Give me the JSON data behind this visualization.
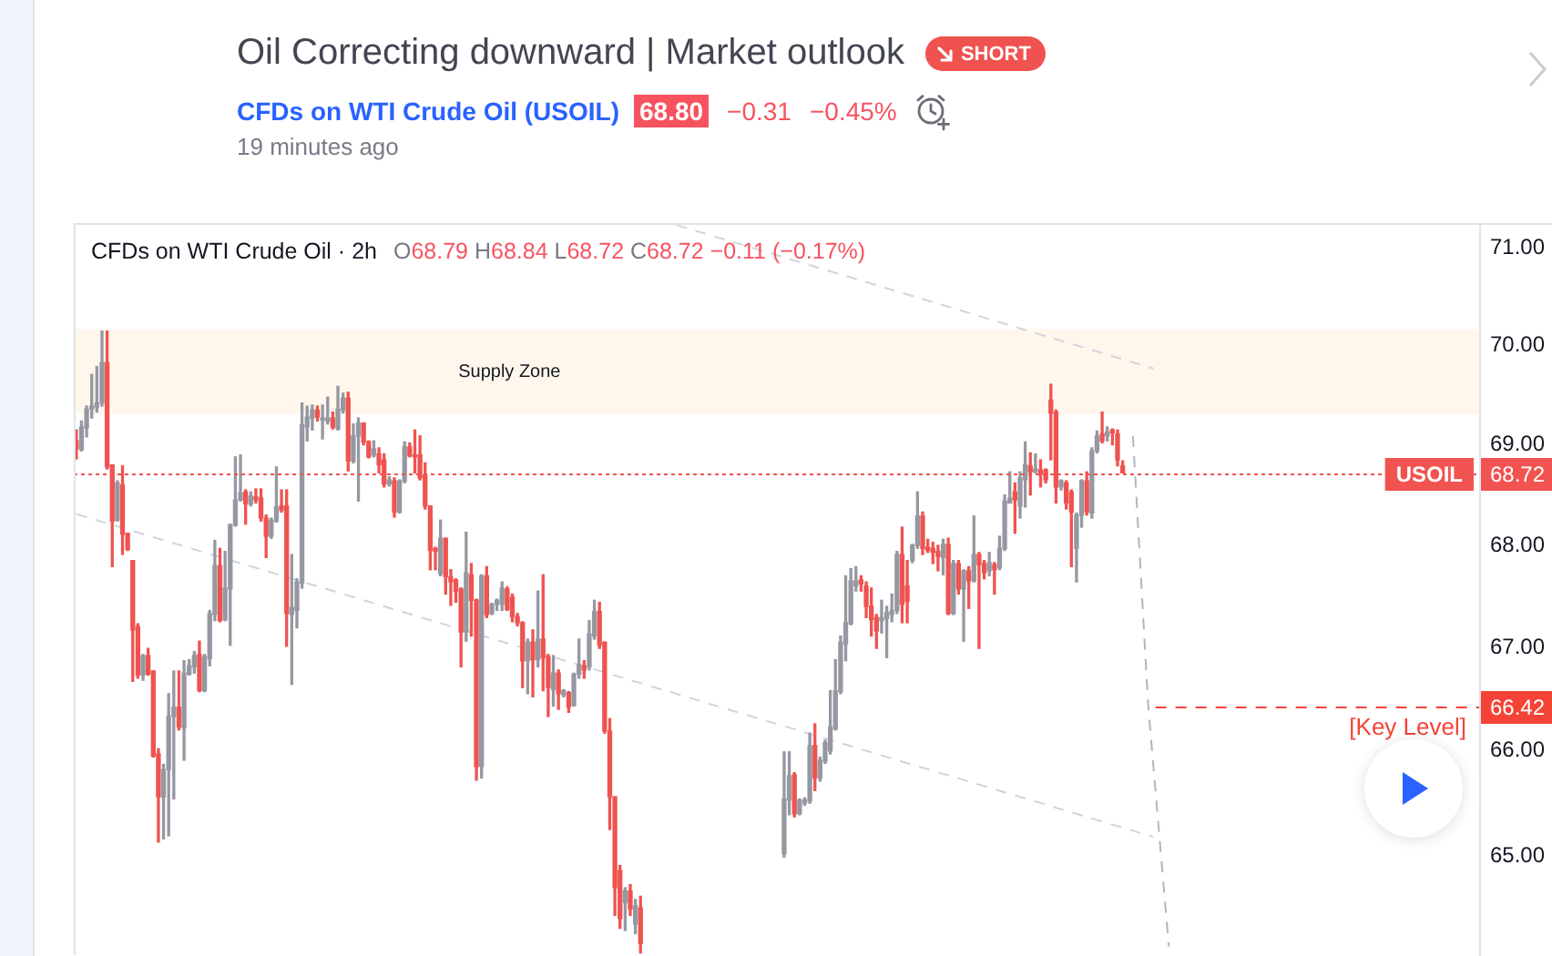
{
  "chart_data": {
    "type": "candlestick",
    "title": "Oil Correcting downward | Market outlook",
    "subtitle": "CFDs on WTI Crude Oil · 2h",
    "annotations": [
      "SHORT",
      "CFDs on WTI Crude Oil (USOIL)",
      "68.80",
      "−0.31",
      "−0.45%",
      "19 minutes ago",
      "O68.79 H68.84 L68.72 C68.72 −0.11 (−0.17%)",
      {
        "text": "68.72",
        "y": 68.72
      },
      {
        "text": "66.42",
        "y": 66.42
      }
    ],
    "categories": [
      null,
      null,
      null,
      null,
      null,
      null,
      null,
      null,
      null,
      null,
      null,
      null,
      null,
      null,
      null,
      null,
      null,
      null,
      null,
      null,
      null,
      null,
      null,
      null,
      null,
      null,
      null,
      null,
      null,
      null,
      null,
      null,
      null,
      null,
      null,
      null,
      null,
      null,
      null,
      null,
      null,
      null,
      null,
      null,
      null,
      null,
      null,
      null,
      null,
      null,
      null,
      null,
      null,
      null,
      null,
      null,
      null,
      null,
      null,
      null,
      null,
      null,
      null,
      null,
      null,
      null,
      null,
      null,
      null,
      null,
      null,
      null,
      null,
      null,
      null,
      null,
      null,
      null,
      null,
      null,
      null,
      null,
      null,
      null,
      null,
      null,
      null,
      null,
      null,
      null,
      null,
      null,
      null,
      null,
      null,
      null,
      null,
      null,
      null,
      null,
      null,
      null,
      null,
      null,
      null,
      null,
      null,
      null,
      null,
      null,
      null,
      null,
      null,
      null,
      null,
      null,
      null,
      null,
      null,
      null,
      null,
      null,
      null,
      null,
      null,
      null,
      null,
      null,
      null,
      null,
      null,
      null,
      null,
      null,
      null,
      null,
      null,
      null,
      null,
      null,
      null,
      null,
      null,
      null,
      null,
      null,
      null,
      null,
      null,
      null,
      null,
      null,
      null,
      null,
      null,
      null,
      null,
      null,
      null,
      null,
      null,
      null,
      null,
      null,
      null,
      null,
      null,
      null,
      null,
      null,
      null,
      null,
      null,
      null,
      null,
      null,
      null,
      null,
      null,
      null,
      null,
      null,
      null,
      null,
      null,
      null,
      null,
      null,
      null,
      null,
      null,
      null,
      null,
      null,
      null,
      null,
      null,
      null,
      null,
      null,
      null,
      null,
      null,
      null,
      null,
      null,
      null,
      null,
      null,
      null,
      null,
      null,
      null,
      null,
      null,
      null,
      null,
      null,
      null,
      null,
      null,
      null,
      null,
      null,
      null,
      null,
      null,
      null,
      null,
      null,
      null,
      null,
      null,
      null,
      null,
      null,
      null,
      null,
      null,
      null,
      null,
      null,
      null,
      null,
      null,
      null,
      null,
      null,
      null,
      null,
      null,
      null,
      null,
      null,
      null,
      null,
      null,
      null,
      null,
      null,
      null,
      null,
      null,
      null,
      null,
      null,
      null,
      null,
      null,
      null,
      null,
      null,
      null,
      null
    ],
    "ohlc": [
      [
        69.04,
        69.15,
        68.86,
        68.96
      ],
      [
        68.95,
        69.24,
        68.94,
        69.18
      ],
      [
        69.17,
        69.39,
        69.08,
        69.36
      ],
      [
        69.36,
        69.71,
        69.27,
        69.39
      ],
      [
        69.38,
        69.79,
        69.33,
        69.42
      ],
      [
        69.42,
        70.15,
        69.39,
        69.83
      ],
      [
        69.83,
        70.15,
        68.76,
        68.78
      ],
      [
        68.8,
        68.8,
        67.79,
        68.24
      ],
      [
        68.25,
        68.64,
        68.24,
        68.62
      ],
      [
        68.6,
        68.79,
        67.91,
        68.11
      ],
      [
        68.12,
        68.12,
        67.95,
        67.96
      ],
      [
        67.85,
        67.85,
        66.67,
        67.17
      ],
      [
        67.2,
        67.23,
        66.7,
        66.73
      ],
      [
        66.73,
        66.93,
        66.68,
        66.92
      ],
      [
        66.92,
        66.99,
        66.73,
        66.74
      ],
      [
        66.77,
        66.77,
        65.94,
        65.95
      ],
      [
        65.97,
        66.02,
        65.13,
        65.56
      ],
      [
        65.56,
        65.87,
        65.16,
        65.82
      ],
      [
        65.82,
        66.55,
        65.19,
        66.33
      ],
      [
        66.33,
        66.77,
        65.54,
        66.42
      ],
      [
        66.42,
        66.77,
        66.2,
        66.23
      ],
      [
        66.22,
        66.87,
        65.91,
        66.75
      ],
      [
        66.74,
        66.88,
        66.73,
        66.82
      ],
      [
        66.81,
        66.96,
        66.75,
        66.92
      ],
      [
        66.93,
        67.06,
        66.57,
        66.58
      ],
      [
        66.58,
        66.93,
        66.57,
        66.91
      ],
      [
        66.89,
        67.36,
        66.82,
        67.33
      ],
      [
        67.32,
        68.05,
        67.26,
        67.8
      ],
      [
        67.8,
        67.97,
        67.25,
        67.26
      ],
      [
        67.27,
        67.94,
        67.26,
        67.58
      ],
      [
        67.57,
        68.21,
        67.02,
        68.2
      ],
      [
        68.2,
        68.88,
        68.19,
        68.45
      ],
      [
        68.45,
        68.9,
        68.44,
        68.52
      ],
      [
        68.53,
        68.55,
        68.21,
        68.41
      ],
      [
        68.41,
        68.53,
        68.39,
        68.49
      ],
      [
        68.48,
        68.56,
        68.42,
        68.45
      ],
      [
        68.47,
        68.56,
        68.24,
        68.27
      ],
      [
        68.27,
        68.3,
        67.88,
        68.09
      ],
      [
        68.09,
        68.27,
        68.07,
        68.25
      ],
      [
        68.24,
        68.78,
        68.23,
        68.38
      ],
      [
        68.39,
        68.55,
        68.33,
        68.35
      ],
      [
        68.39,
        68.55,
        67.01,
        67.33
      ],
      [
        67.32,
        67.91,
        66.64,
        67.39
      ],
      [
        67.36,
        67.67,
        67.19,
        67.64
      ],
      [
        67.63,
        69.42,
        67.58,
        69.2
      ],
      [
        69.18,
        69.39,
        69.04,
        69.28
      ],
      [
        69.27,
        69.4,
        69.15,
        69.35
      ],
      [
        69.35,
        69.39,
        69.24,
        69.28
      ],
      [
        69.25,
        69.4,
        69.06,
        69.27
      ],
      [
        69.24,
        69.48,
        69.21,
        69.27
      ],
      [
        69.27,
        69.33,
        69.16,
        69.18
      ],
      [
        69.16,
        69.59,
        69.15,
        69.36
      ],
      [
        69.35,
        69.52,
        69.32,
        69.47
      ],
      [
        69.47,
        69.53,
        68.74,
        68.84
      ],
      [
        68.84,
        69.21,
        68.82,
        69.09
      ],
      [
        69.09,
        69.27,
        68.44,
        69.22
      ],
      [
        69.22,
        69.22,
        69.0,
        69.03
      ],
      [
        69.03,
        69.04,
        68.87,
        68.88
      ],
      [
        68.9,
        69.04,
        68.88,
        68.96
      ],
      [
        68.91,
        68.97,
        68.72,
        68.8
      ],
      [
        68.85,
        68.91,
        68.58,
        68.61
      ],
      [
        68.61,
        68.68,
        68.59,
        68.65
      ],
      [
        68.64,
        68.67,
        68.28,
        68.33
      ],
      [
        68.33,
        68.65,
        68.32,
        68.64
      ],
      [
        68.64,
        69.03,
        68.62,
        68.98
      ],
      [
        68.98,
        69.02,
        68.88,
        68.89
      ],
      [
        68.9,
        69.15,
        68.72,
        68.88
      ],
      [
        68.9,
        69.09,
        68.65,
        68.67
      ],
      [
        68.7,
        68.82,
        68.36,
        68.39
      ],
      [
        68.39,
        68.39,
        67.76,
        67.95
      ],
      [
        67.97,
        67.98,
        67.76,
        67.94
      ],
      [
        67.72,
        68.25,
        67.7,
        68.07
      ],
      [
        68.07,
        68.07,
        67.52,
        67.69
      ],
      [
        67.69,
        67.76,
        67.41,
        67.64
      ],
      [
        67.66,
        67.67,
        67.44,
        67.55
      ],
      [
        67.57,
        67.58,
        66.81,
        67.15
      ],
      [
        67.15,
        68.13,
        67.06,
        67.73
      ],
      [
        67.71,
        67.82,
        67.11,
        67.46
      ],
      [
        67.46,
        67.47,
        65.72,
        65.85
      ],
      [
        65.85,
        67.71,
        65.74,
        67.7
      ],
      [
        67.7,
        67.79,
        67.29,
        67.32
      ],
      [
        67.33,
        67.43,
        67.32,
        67.42
      ],
      [
        67.42,
        67.47,
        67.36,
        67.46
      ],
      [
        67.42,
        67.64,
        67.36,
        67.58
      ],
      [
        67.57,
        67.59,
        67.36,
        67.37
      ],
      [
        67.49,
        67.52,
        67.25,
        67.3
      ],
      [
        67.3,
        67.33,
        67.21,
        67.24
      ],
      [
        67.24,
        67.25,
        66.61,
        66.87
      ],
      [
        66.87,
        67.08,
        66.55,
        67.05
      ],
      [
        67.05,
        67.17,
        66.52,
        66.88
      ],
      [
        66.88,
        67.55,
        66.81,
        67.08
      ],
      [
        67.08,
        67.71,
        66.58,
        66.9
      ],
      [
        66.91,
        66.93,
        66.33,
        66.61
      ],
      [
        66.59,
        66.92,
        66.43,
        66.75
      ],
      [
        66.75,
        66.78,
        66.4,
        66.55
      ],
      [
        66.54,
        66.59,
        66.52,
        66.58
      ],
      [
        66.56,
        66.57,
        66.37,
        66.42
      ],
      [
        66.44,
        66.75,
        66.43,
        66.74
      ],
      [
        66.74,
        67.08,
        66.7,
        66.83
      ],
      [
        66.82,
        66.87,
        66.7,
        66.78
      ],
      [
        66.81,
        67.26,
        66.78,
        67.13
      ],
      [
        67.11,
        67.46,
        67.08,
        67.35
      ],
      [
        67.35,
        67.44,
        66.99,
        67.02
      ],
      [
        67.05,
        67.05,
        66.17,
        66.19
      ],
      [
        66.19,
        66.31,
        65.25,
        65.56
      ],
      [
        65.56,
        65.56,
        64.44,
        64.7
      ],
      [
        64.86,
        64.91,
        64.32,
        64.41
      ],
      [
        64.56,
        64.7,
        64.3,
        64.67
      ],
      [
        64.67,
        64.73,
        64.44,
        64.5
      ],
      [
        64.36,
        64.59,
        64.27,
        64.53
      ],
      [
        64.51,
        64.62,
        64.09,
        64.18
      ],
      null,
      null,
      null,
      null,
      null,
      null,
      null,
      null,
      null,
      null,
      null,
      null,
      null,
      null,
      null,
      null,
      null,
      null,
      null,
      null,
      null,
      null,
      null,
      null,
      null,
      null,
      null,
      [
        65.02,
        65.99,
        64.99,
        65.54
      ],
      [
        65.53,
        65.99,
        65.39,
        65.76
      ],
      [
        65.77,
        65.79,
        65.37,
        65.4
      ],
      [
        65.4,
        65.54,
        65.39,
        65.53
      ],
      [
        65.5,
        65.55,
        65.48,
        65.53
      ],
      [
        65.52,
        66.17,
        65.5,
        66.05
      ],
      [
        66.05,
        66.26,
        65.62,
        65.74
      ],
      [
        65.74,
        65.94,
        65.71,
        65.91
      ],
      [
        65.9,
        66.1,
        65.88,
        66.08
      ],
      [
        66.0,
        66.58,
        65.97,
        66.23
      ],
      [
        66.21,
        66.88,
        66.2,
        66.58
      ],
      [
        66.57,
        67.11,
        66.55,
        67.05
      ],
      [
        67.03,
        67.7,
        66.87,
        67.24
      ],
      [
        67.23,
        67.77,
        67.22,
        67.65
      ],
      [
        67.6,
        67.79,
        67.55,
        67.65
      ],
      [
        67.66,
        67.7,
        67.55,
        67.62
      ],
      [
        67.6,
        67.64,
        67.29,
        67.4
      ],
      [
        67.4,
        67.58,
        67.11,
        67.27
      ],
      [
        67.29,
        67.32,
        66.99,
        67.16
      ],
      [
        67.26,
        67.46,
        67.14,
        67.29
      ],
      [
        67.28,
        67.4,
        66.9,
        67.34
      ],
      [
        67.32,
        67.52,
        67.25,
        67.36
      ],
      [
        67.36,
        67.94,
        67.33,
        67.91
      ],
      [
        67.91,
        68.18,
        67.24,
        67.42
      ],
      [
        67.6,
        67.85,
        67.24,
        67.45
      ],
      [
        67.85,
        68.01,
        67.83,
        68.0
      ],
      [
        68.0,
        68.53,
        67.97,
        68.29
      ],
      [
        68.29,
        68.33,
        67.91,
        67.97
      ],
      [
        67.98,
        68.06,
        67.93,
        67.95
      ],
      [
        67.97,
        68.03,
        67.82,
        67.93
      ],
      [
        67.94,
        68.0,
        67.75,
        67.89
      ],
      [
        67.88,
        68.06,
        67.71,
        68.01
      ],
      [
        68.01,
        68.07,
        67.32,
        67.33
      ],
      [
        67.33,
        67.85,
        67.32,
        67.82
      ],
      [
        67.82,
        67.85,
        67.52,
        67.57
      ],
      [
        67.57,
        67.76,
        67.06,
        67.75
      ],
      [
        67.75,
        67.79,
        67.38,
        67.65
      ],
      [
        67.65,
        68.29,
        67.64,
        67.91
      ],
      [
        67.91,
        67.93,
        66.99,
        67.81
      ],
      [
        67.82,
        67.85,
        67.67,
        67.73
      ],
      [
        67.75,
        67.93,
        67.7,
        67.83
      ],
      [
        67.81,
        67.83,
        67.52,
        67.76
      ],
      [
        67.78,
        68.09,
        67.76,
        67.97
      ],
      [
        67.97,
        68.5,
        67.95,
        68.44
      ],
      [
        68.42,
        68.73,
        68.42,
        68.47
      ],
      [
        68.53,
        68.62,
        68.12,
        68.45
      ],
      [
        68.39,
        68.73,
        68.27,
        68.67
      ],
      [
        68.65,
        69.03,
        68.38,
        68.8
      ],
      [
        68.79,
        68.92,
        68.5,
        68.73
      ],
      [
        68.73,
        68.91,
        68.72,
        68.76
      ],
      [
        68.75,
        68.85,
        68.58,
        68.71
      ],
      [
        68.75,
        68.76,
        68.62,
        68.65
      ],
      [
        69.45,
        69.61,
        68.85,
        69.32
      ],
      [
        69.33,
        69.35,
        68.42,
        68.58
      ],
      [
        68.58,
        68.65,
        68.55,
        68.64
      ],
      [
        68.62,
        68.64,
        68.36,
        68.42
      ],
      [
        68.53,
        68.55,
        67.79,
        68.33
      ],
      [
        67.97,
        68.32,
        67.64,
        68.3
      ],
      [
        68.3,
        68.65,
        68.18,
        68.64
      ],
      [
        68.64,
        68.73,
        68.3,
        68.33
      ],
      [
        68.32,
        68.97,
        68.27,
        68.94
      ],
      [
        68.94,
        69.14,
        68.92,
        69.09
      ],
      [
        69.11,
        69.33,
        69.02,
        69.04
      ],
      [
        69.09,
        69.18,
        69.04,
        69.13
      ],
      [
        69.15,
        69.16,
        69.0,
        69.12
      ],
      [
        69.11,
        69.15,
        68.79,
        68.85
      ],
      [
        68.79,
        68.84,
        68.72,
        68.72
      ],
      null,
      null,
      null,
      null,
      null,
      null,
      null,
      null,
      null,
      null,
      null,
      null,
      null,
      null,
      null,
      null,
      null,
      null,
      null,
      null,
      null,
      null,
      null,
      null,
      null,
      null,
      null,
      null,
      null,
      null,
      null,
      null,
      null,
      null,
      null,
      null,
      null,
      null,
      null,
      null,
      null,
      null,
      null,
      null,
      null,
      null,
      null,
      null,
      null,
      null,
      null,
      null,
      null,
      null,
      null,
      null,
      null,
      null,
      null,
      null,
      null,
      null,
      null,
      null,
      null,
      null,
      null,
      null,
      null
    ],
    "colors": [
      "#ef5350",
      "#9598a1",
      "#9598a1",
      "#9598a1",
      "#9598a1",
      "#9598a1",
      "#ef5350",
      "#ef5350",
      "#9598a1",
      "#ef5350",
      "#ef5350",
      "#ef5350",
      "#ef5350",
      "#9598a1",
      "#ef5350",
      "#ef5350",
      "#ef5350",
      "#9598a1",
      "#9598a1",
      "#9598a1",
      "#ef5350",
      "#9598a1",
      "#9598a1",
      "#9598a1",
      "#ef5350",
      "#9598a1",
      "#9598a1",
      "#9598a1",
      "#ef5350",
      "#9598a1",
      "#9598a1",
      "#9598a1",
      "#9598a1",
      "#ef5350",
      "#9598a1",
      "#ef5350",
      "#ef5350",
      "#ef5350",
      "#9598a1",
      "#9598a1",
      "#ef5350",
      "#ef5350",
      "#9598a1",
      "#9598a1",
      "#9598a1",
      "#9598a1",
      "#9598a1",
      "#ef5350",
      "#9598a1",
      "#9598a1",
      "#ef5350",
      "#9598a1",
      "#9598a1",
      "#ef5350",
      "#9598a1",
      "#9598a1",
      "#ef5350",
      "#ef5350",
      "#9598a1",
      "#ef5350",
      "#ef5350",
      "#9598a1",
      "#ef5350",
      "#9598a1",
      "#9598a1",
      "#ef5350",
      "#ef5350",
      "#ef5350",
      "#ef5350",
      "#ef5350",
      "#ef5350",
      "#9598a1",
      "#ef5350",
      "#ef5350",
      "#ef5350",
      "#ef5350",
      "#9598a1",
      "#ef5350",
      "#ef5350",
      "#9598a1",
      "#ef5350",
      "#9598a1",
      "#9598a1",
      "#9598a1",
      "#ef5350",
      "#ef5350",
      "#ef5350",
      "#ef5350",
      "#9598a1",
      "#ef5350",
      "#9598a1",
      "#ef5350",
      "#ef5350",
      "#9598a1",
      "#ef5350",
      "#9598a1",
      "#ef5350",
      "#9598a1",
      "#9598a1",
      "#ef5350",
      "#9598a1",
      "#9598a1",
      "#ef5350",
      "#ef5350",
      "#ef5350",
      "#ef5350",
      "#ef5350",
      "#9598a1",
      "#ef5350",
      "#9598a1",
      "#ef5350",
      null,
      null,
      null,
      null,
      null,
      null,
      null,
      null,
      null,
      null,
      null,
      null,
      null,
      null,
      null,
      null,
      null,
      null,
      null,
      null,
      null,
      null,
      null,
      null,
      null,
      null,
      null,
      "#9598a1",
      "#9598a1",
      "#ef5350",
      "#9598a1",
      "#9598a1",
      "#9598a1",
      "#ef5350",
      "#9598a1",
      "#9598a1",
      "#9598a1",
      "#9598a1",
      "#9598a1",
      "#9598a1",
      "#9598a1",
      "#9598a1",
      "#ef5350",
      "#ef5350",
      "#ef5350",
      "#ef5350",
      "#9598a1",
      "#9598a1",
      "#9598a1",
      "#9598a1",
      "#ef5350",
      "#ef5350",
      "#9598a1",
      "#9598a1",
      "#ef5350",
      "#ef5350",
      "#ef5350",
      "#ef5350",
      "#9598a1",
      "#ef5350",
      "#9598a1",
      "#ef5350",
      "#9598a1",
      "#ef5350",
      "#9598a1",
      "#ef5350",
      "#ef5350",
      "#9598a1",
      "#ef5350",
      "#9598a1",
      "#9598a1",
      "#9598a1",
      "#ef5350",
      "#9598a1",
      "#9598a1",
      "#ef5350",
      "#9598a1",
      "#ef5350",
      "#ef5350",
      "#ef5350",
      "#ef5350",
      "#9598a1",
      "#ef5350",
      "#ef5350",
      "#9598a1",
      "#9598a1",
      "#ef5350",
      "#9598a1",
      "#9598a1",
      "#ef5350",
      "#9598a1",
      "#ef5350",
      "#ef5350",
      "#ef5350",
      null,
      null,
      null,
      null,
      null,
      null,
      null,
      null,
      null,
      null,
      null,
      null,
      null,
      null,
      null,
      null,
      null,
      null,
      null,
      null,
      null,
      null,
      null,
      null,
      null,
      null,
      null,
      null,
      null,
      null,
      null,
      null,
      null,
      null,
      null,
      null,
      null,
      null,
      null,
      null,
      null,
      null,
      null,
      null,
      null,
      null,
      null,
      null,
      null,
      null,
      null,
      null,
      null,
      null,
      null,
      null,
      null,
      null,
      null,
      null,
      null,
      null,
      null,
      null,
      null,
      null,
      null,
      null,
      null
    ],
    "series": [
      {
        "type": "line",
        "color": "#d1d4dc",
        "line_style": "dashed",
        "values": [
          null,
          null,
          null,
          null,
          null,
          null,
          null,
          null,
          null,
          null,
          null,
          null,
          null,
          null,
          null,
          null,
          null,
          null,
          null,
          null,
          null,
          null,
          null,
          null,
          null,
          null,
          null,
          null,
          null,
          null,
          null,
          null,
          null,
          null,
          null,
          null,
          null,
          null,
          null,
          null,
          null,
          null,
          null,
          null,
          null,
          null,
          null,
          null,
          null,
          null,
          null,
          null,
          null,
          null,
          null,
          null,
          null,
          null,
          null,
          null,
          null,
          null,
          null,
          null,
          null,
          null,
          null,
          null,
          null,
          null,
          null,
          null,
          null,
          null,
          null,
          null,
          null,
          null,
          null,
          null,
          null,
          null,
          null,
          null,
          null,
          null,
          null,
          null,
          null,
          null,
          null,
          null,
          null,
          null,
          null,
          null,
          null,
          null,
          null,
          null,
          null,
          null,
          null,
          null,
          null,
          null,
          null,
          null,
          null,
          null,
          null,
          null,
          null,
          null,
          null,
          null,
          null,
          71.24,
          null,
          null,
          null,
          null,
          null,
          null,
          null,
          null,
          null,
          null,
          null,
          null,
          null,
          null,
          null,
          null,
          null,
          null,
          null,
          null,
          null,
          null,
          null,
          null,
          null,
          null,
          null,
          null,
          null,
          null,
          null,
          null,
          null,
          null,
          null,
          null,
          null,
          null,
          null,
          null,
          null,
          null,
          null,
          null,
          null,
          null,
          null,
          null,
          null,
          null,
          null,
          null,
          null,
          null,
          null,
          null,
          null,
          null,
          null,
          null,
          null,
          null,
          null,
          null,
          null,
          null,
          null,
          null,
          null,
          null,
          null,
          null,
          null,
          null,
          null,
          null,
          null,
          null,
          null,
          null,
          null,
          null,
          null,
          null,
          null,
          null,
          null,
          null,
          null,
          null,
          null,
          null,
          69.77,
          null,
          null,
          null,
          null,
          null,
          null,
          null,
          null,
          null,
          null,
          null,
          null,
          null,
          null,
          null,
          null,
          null,
          null,
          null,
          null,
          null,
          null,
          null,
          null,
          null,
          null,
          null,
          null,
          null,
          null,
          null,
          null,
          null,
          null,
          null,
          null,
          null,
          null,
          null,
          null,
          null,
          null,
          null,
          null,
          null,
          null,
          null,
          null,
          null,
          null,
          null,
          null,
          null,
          null,
          null,
          null,
          null,
          null,
          null,
          null,
          null,
          null,
          null
        ]
      },
      {
        "type": "line",
        "color": "#d1d4dc",
        "line_style": "dashed",
        "values": [
          68.31,
          null,
          null,
          null,
          null,
          null,
          null,
          null,
          null,
          null,
          null,
          null,
          null,
          null,
          null,
          null,
          null,
          null,
          null,
          null,
          null,
          null,
          null,
          null,
          null,
          null,
          null,
          null,
          null,
          null,
          null,
          null,
          null,
          null,
          null,
          null,
          null,
          null,
          null,
          null,
          null,
          null,
          null,
          null,
          null,
          null,
          null,
          null,
          null,
          null,
          null,
          null,
          null,
          null,
          null,
          null,
          null,
          null,
          null,
          null,
          null,
          null,
          null,
          null,
          null,
          null,
          null,
          null,
          null,
          null,
          null,
          null,
          null,
          null,
          null,
          null,
          null,
          null,
          null,
          null,
          null,
          null,
          null,
          null,
          null,
          null,
          null,
          null,
          null,
          null,
          null,
          null,
          null,
          null,
          null,
          null,
          null,
          null,
          null,
          null,
          null,
          null,
          null,
          null,
          null,
          null,
          null,
          null,
          null,
          null,
          null,
          null,
          null,
          null,
          null,
          null,
          null,
          null,
          null,
          null,
          null,
          null,
          null,
          null,
          null,
          null,
          null,
          null,
          null,
          null,
          null,
          null,
          null,
          null,
          null,
          null,
          null,
          null,
          null,
          null,
          null,
          null,
          null,
          null,
          null,
          null,
          null,
          null,
          null,
          null,
          null,
          null,
          null,
          null,
          null,
          null,
          null,
          null,
          null,
          null,
          null,
          null,
          null,
          null,
          null,
          null,
          null,
          null,
          null,
          null,
          null,
          null,
          null,
          null,
          null,
          null,
          null,
          null,
          null,
          null,
          null,
          null,
          null,
          null,
          null,
          null,
          null,
          null,
          null,
          null,
          null,
          null,
          null,
          null,
          null,
          null,
          null,
          null,
          null,
          null,
          null,
          null,
          null,
          null,
          null,
          null,
          null,
          null,
          null,
          null,
          65.18,
          null,
          null,
          null,
          null,
          null,
          null,
          null,
          null,
          null,
          null,
          null,
          null,
          null,
          null,
          null,
          null,
          null,
          null,
          null,
          null,
          null,
          null,
          null,
          null,
          null,
          null,
          null,
          null,
          null,
          null,
          null,
          null,
          null,
          null,
          null,
          null,
          null,
          null,
          null,
          null,
          null,
          null,
          null,
          null,
          null,
          null,
          null,
          null,
          null,
          null,
          null,
          null,
          null,
          null,
          null,
          null,
          null,
          null,
          null,
          null,
          null,
          null,
          null
        ]
      },
      {
        "type": "line",
        "color": "#b2b5be",
        "line_style": "dashed",
        "values": [
          null,
          null,
          null,
          null,
          null,
          null,
          null,
          null,
          null,
          null,
          null,
          null,
          null,
          null,
          null,
          null,
          null,
          null,
          null,
          null,
          null,
          null,
          null,
          null,
          null,
          null,
          null,
          null,
          null,
          null,
          null,
          null,
          null,
          null,
          null,
          null,
          null,
          null,
          null,
          null,
          null,
          null,
          null,
          null,
          null,
          null,
          null,
          null,
          null,
          null,
          null,
          null,
          null,
          null,
          null,
          null,
          null,
          null,
          null,
          null,
          null,
          null,
          null,
          null,
          null,
          null,
          null,
          null,
          null,
          null,
          null,
          null,
          null,
          null,
          null,
          null,
          null,
          null,
          null,
          null,
          null,
          null,
          null,
          null,
          null,
          null,
          null,
          null,
          null,
          null,
          null,
          null,
          null,
          null,
          null,
          null,
          null,
          null,
          null,
          null,
          null,
          null,
          null,
          null,
          null,
          null,
          null,
          null,
          null,
          null,
          null,
          null,
          null,
          null,
          null,
          null,
          null,
          null,
          null,
          null,
          null,
          null,
          null,
          null,
          null,
          null,
          null,
          null,
          null,
          null,
          null,
          null,
          null,
          null,
          null,
          null,
          null,
          null,
          null,
          null,
          null,
          null,
          null,
          null,
          null,
          null,
          null,
          null,
          null,
          null,
          null,
          null,
          null,
          null,
          null,
          null,
          null,
          null,
          null,
          null,
          null,
          null,
          null,
          null,
          null,
          null,
          null,
          null,
          null,
          null,
          null,
          null,
          null,
          null,
          null,
          null,
          null,
          null,
          null,
          null,
          null,
          null,
          null,
          null,
          null,
          null,
          null,
          null,
          null,
          null,
          null,
          null,
          null,
          null,
          null,
          null,
          null,
          null,
          null,
          null,
          null,
          null,
          null,
          null,
          null,
          null,
          69.09,
          null,
          null,
          66.42,
          null,
          null,
          null,
          64.15,
          null,
          null,
          null,
          null,
          null,
          null,
          null,
          null,
          null,
          null,
          null,
          null,
          null,
          null,
          null,
          null,
          null,
          null,
          null,
          null,
          null,
          null,
          null,
          null,
          null,
          null,
          null,
          null,
          null,
          null,
          null,
          null,
          null,
          null,
          null,
          null,
          null,
          null,
          null,
          null,
          null,
          null,
          null,
          null,
          null,
          null,
          null,
          null,
          null,
          null,
          null,
          null,
          null,
          null,
          null,
          null,
          null,
          null,
          null,
          null
        ]
      }
    ],
    "ylim": [
      64.07,
      71.26
    ],
    "log": true,
    "yticks": [
      {
        "value": 71,
        "label": "71.00"
      },
      {
        "value": 70,
        "label": "70.00"
      },
      {
        "value": 69,
        "label": "69.00"
      },
      {
        "value": 68,
        "label": "68.00"
      },
      {
        "value": 67,
        "label": "67.00"
      },
      {
        "value": 66,
        "label": "66.00"
      },
      {
        "value": 65,
        "label": "65.00"
      }
    ],
    "bands": [
      {
        "axis": "y",
        "from": 69.31,
        "to": 70.17,
        "label": "Supply Zone",
        "color": "#fff7ec"
      }
    ],
    "ref_lines": [
      {
        "axis": "y",
        "value": 68.72,
        "label": "USOIL",
        "color": "#f05350",
        "line_style": "dotted"
      },
      {
        "axis": "y",
        "value": 66.42,
        "label": "[Key Level]",
        "color": "#f44336",
        "line_style": "dashed"
      }
    ]
  }
}
